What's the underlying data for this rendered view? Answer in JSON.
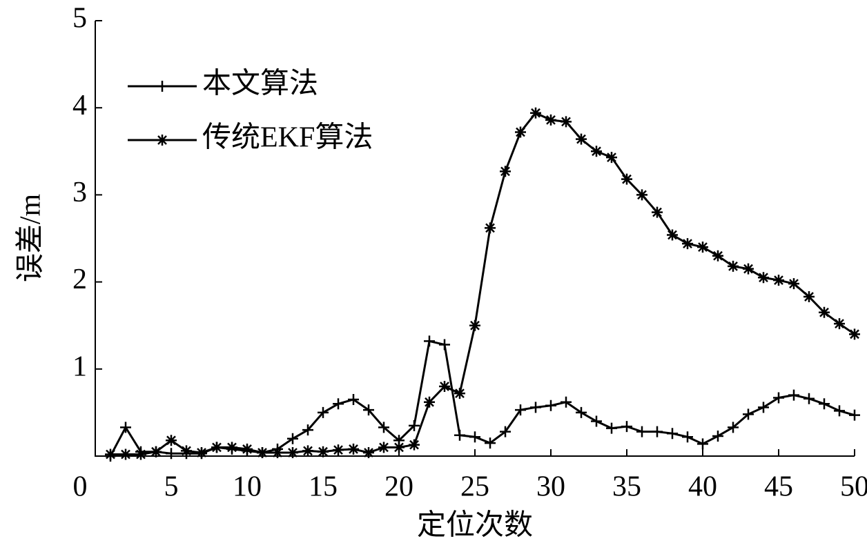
{
  "chart_data": {
    "type": "line",
    "x_label": "定位次数",
    "y_label": "误差/m",
    "x": [
      1,
      2,
      3,
      4,
      5,
      6,
      7,
      8,
      9,
      10,
      11,
      12,
      13,
      14,
      15,
      16,
      17,
      18,
      19,
      20,
      21,
      22,
      23,
      24,
      25,
      26,
      27,
      28,
      29,
      30,
      31,
      32,
      33,
      34,
      35,
      36,
      37,
      38,
      39,
      40,
      41,
      42,
      43,
      44,
      45,
      46,
      47,
      48,
      49,
      50
    ],
    "series": [
      {
        "name": "本文算法",
        "color": "#000000",
        "marker": "plus",
        "values": [
          0.0,
          0.33,
          0.05,
          0.05,
          0.03,
          0.03,
          0.03,
          0.1,
          0.08,
          0.06,
          0.04,
          0.08,
          0.2,
          0.3,
          0.5,
          0.6,
          0.65,
          0.53,
          0.33,
          0.18,
          0.35,
          1.32,
          1.28,
          0.24,
          0.22,
          0.15,
          0.28,
          0.53,
          0.56,
          0.58,
          0.62,
          0.5,
          0.4,
          0.32,
          0.34,
          0.28,
          0.28,
          0.26,
          0.22,
          0.14,
          0.23,
          0.33,
          0.48,
          0.56,
          0.67,
          0.7,
          0.66,
          0.6,
          0.52,
          0.47
        ]
      },
      {
        "name": "传统EKF算法",
        "color": "#000000",
        "marker": "star",
        "values": [
          0.02,
          0.02,
          0.02,
          0.05,
          0.18,
          0.06,
          0.04,
          0.1,
          0.1,
          0.08,
          0.04,
          0.04,
          0.04,
          0.06,
          0.05,
          0.07,
          0.08,
          0.04,
          0.1,
          0.1,
          0.13,
          0.62,
          0.8,
          0.72,
          1.5,
          2.62,
          3.27,
          3.72,
          3.94,
          3.86,
          3.84,
          3.64,
          3.5,
          3.43,
          3.18,
          3.0,
          2.8,
          2.54,
          2.44,
          2.4,
          2.3,
          2.18,
          2.15,
          2.05,
          2.02,
          1.98,
          1.83,
          1.65,
          1.52,
          1.4
        ]
      }
    ],
    "xlim": [
      0,
      50
    ],
    "xticks": [
      0,
      5,
      10,
      15,
      20,
      25,
      30,
      35,
      40,
      45,
      50
    ],
    "ylim": [
      0,
      5
    ],
    "yticks": [
      1,
      2,
      3,
      4,
      5
    ],
    "grid": false,
    "legend": "upper left"
  }
}
